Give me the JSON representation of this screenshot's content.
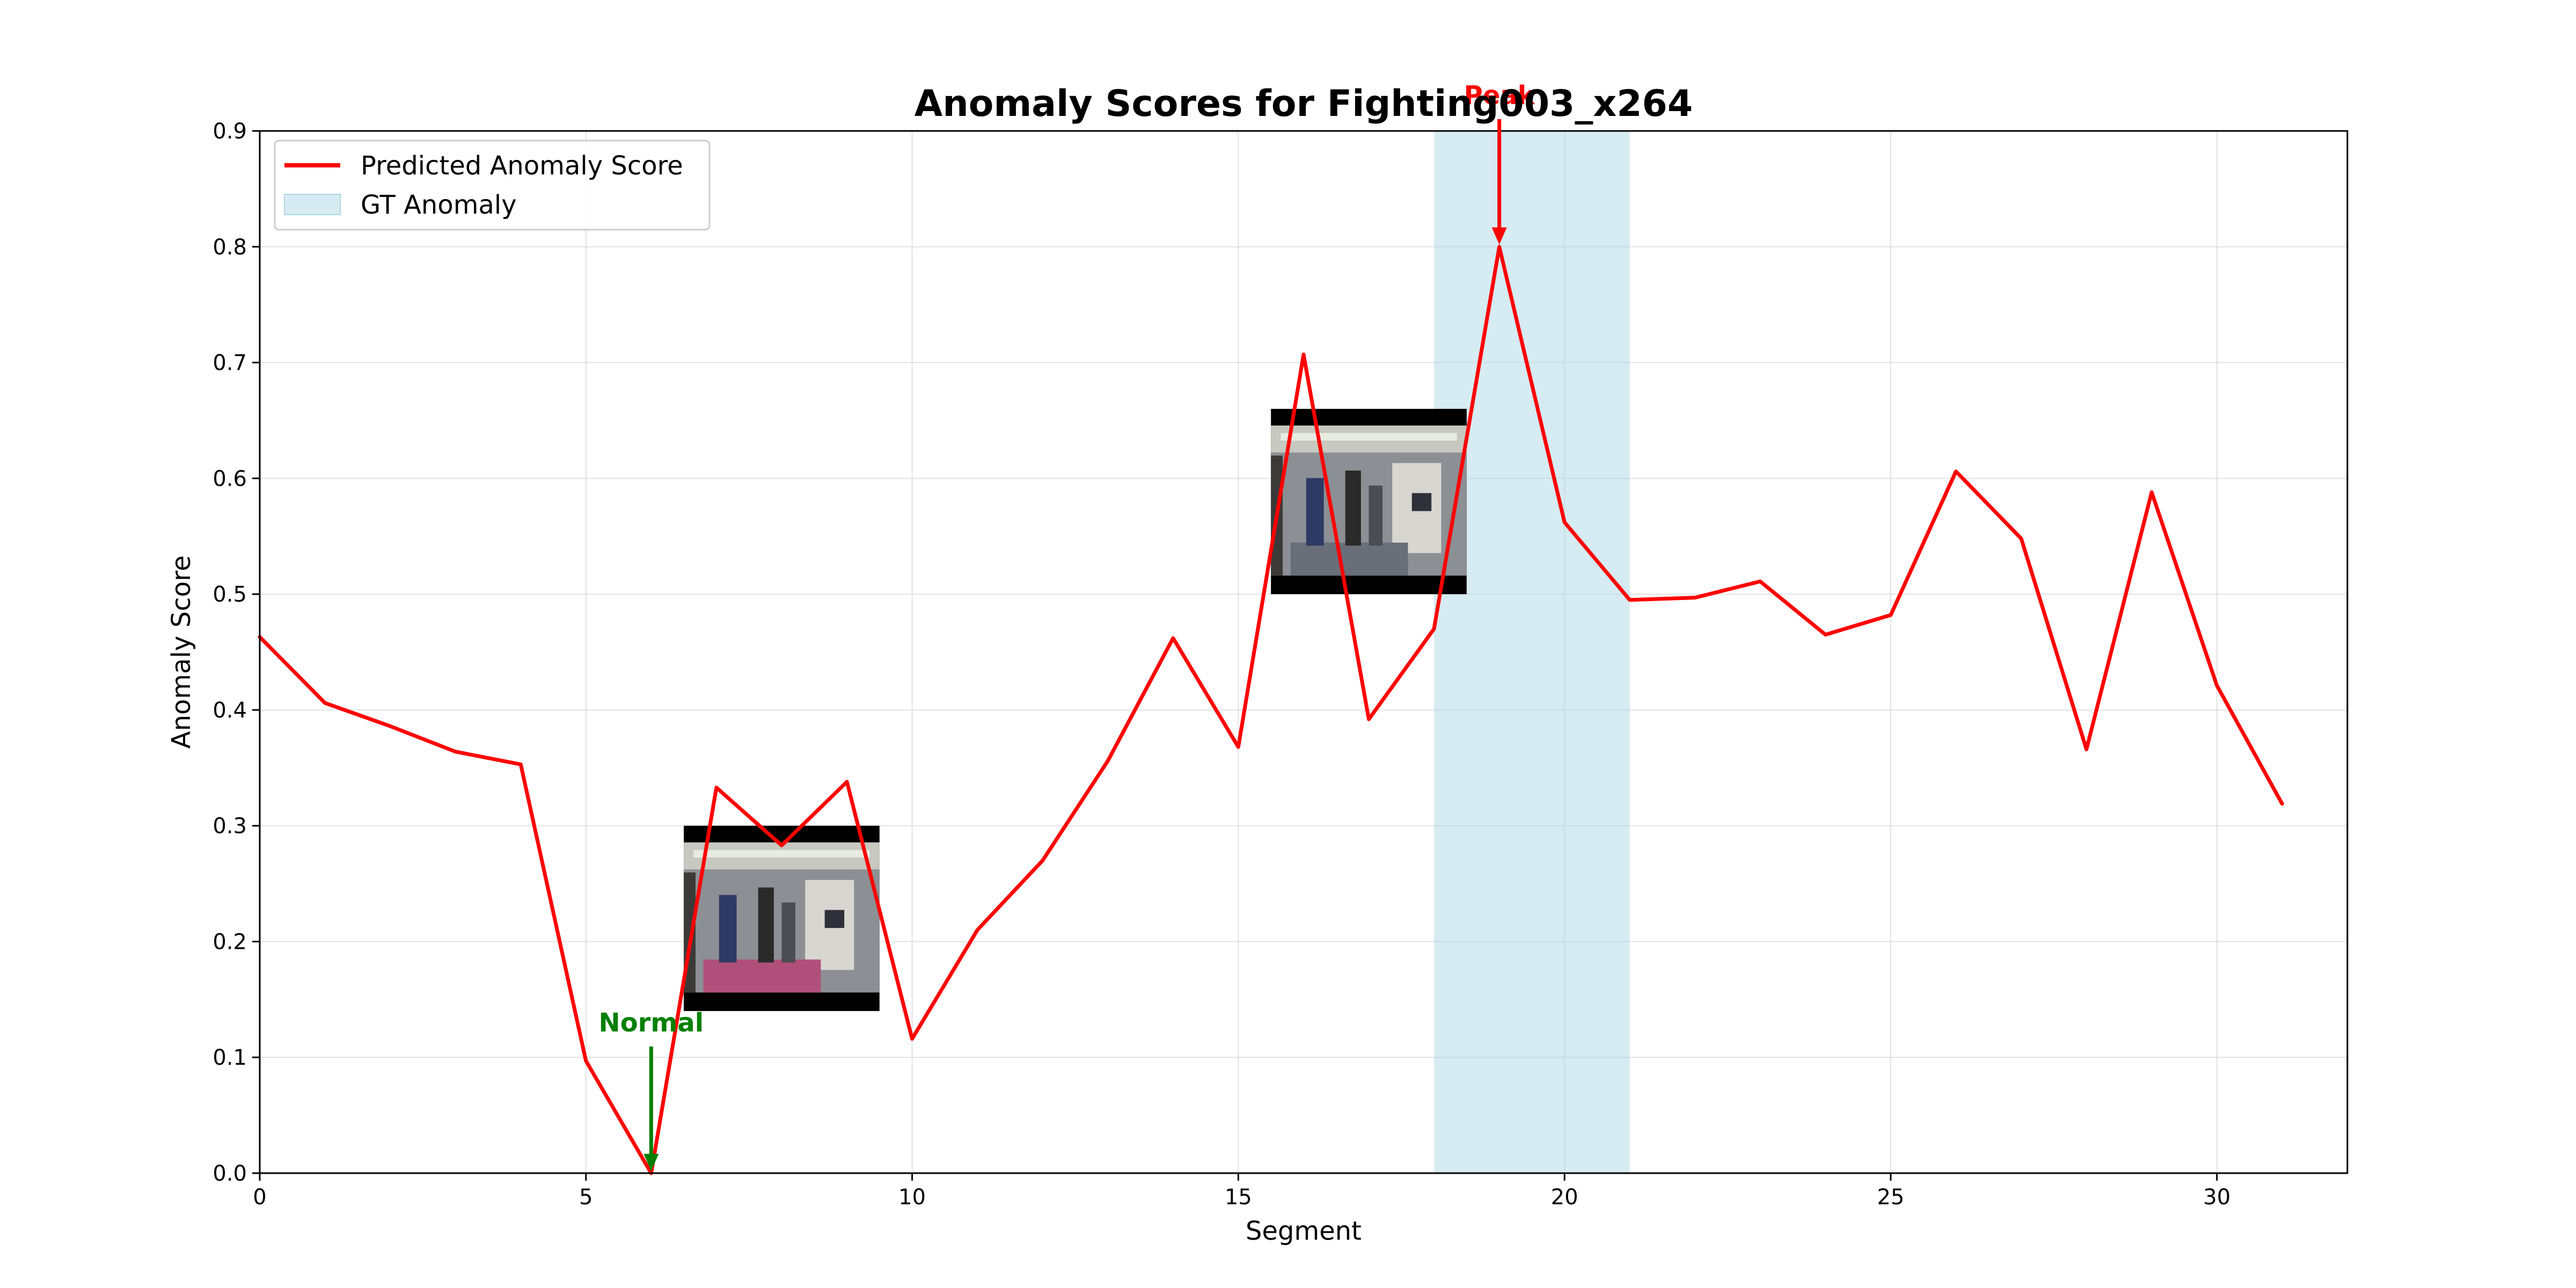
{
  "chart_data": {
    "type": "line",
    "title": "Anomaly Scores for Fighting003_x264",
    "xlabel": "Segment",
    "ylabel": "Anomaly Score",
    "xlim": [
      0,
      32
    ],
    "ylim": [
      0,
      0.9
    ],
    "xticks": [
      0,
      5,
      10,
      15,
      20,
      25,
      30
    ],
    "yticks": [
      0.0,
      0.1,
      0.2,
      0.3,
      0.4,
      0.5,
      0.6,
      0.7,
      0.8,
      0.9
    ],
    "ytick_labels": [
      "0.0",
      "0.1",
      "0.2",
      "0.3",
      "0.4",
      "0.5",
      "0.6",
      "0.7",
      "0.8",
      "0.9"
    ],
    "grid": true,
    "legend_position": "upper-left",
    "series": [
      {
        "name": "Predicted Anomaly Score",
        "color": "#ff0000",
        "x": [
          0,
          1,
          2,
          3,
          4,
          5,
          6,
          7,
          8,
          9,
          10,
          11,
          12,
          13,
          14,
          15,
          16,
          17,
          18,
          19,
          20,
          21,
          22,
          23,
          24,
          25,
          26,
          27,
          28,
          29,
          30,
          31
        ],
        "values": [
          0.463,
          0.406,
          0.386,
          0.364,
          0.353,
          0.097,
          0.0,
          0.333,
          0.283,
          0.338,
          0.116,
          0.21,
          0.27,
          0.356,
          0.462,
          0.368,
          0.707,
          0.392,
          0.47,
          0.8,
          0.562,
          0.495,
          0.497,
          0.511,
          0.465,
          0.482,
          0.606,
          0.548,
          0.366,
          0.588,
          0.421,
          0.319
        ]
      }
    ],
    "gt_anomaly": {
      "name": "GT Anomaly",
      "start": 18,
      "end": 21,
      "color": "#add8e6"
    },
    "annotations": [
      {
        "label": "Peak",
        "x": 19,
        "y": 0.8,
        "color": "#ff0000"
      },
      {
        "label": "Normal",
        "x": 6,
        "y": 0.0,
        "color": "#008000"
      }
    ],
    "thumbnails": [
      {
        "x_range": [
          6.5,
          9.5
        ],
        "y_range": [
          0.14,
          0.3
        ]
      },
      {
        "x_range": [
          15.5,
          18.5
        ],
        "y_range": [
          0.5,
          0.66
        ]
      }
    ]
  }
}
